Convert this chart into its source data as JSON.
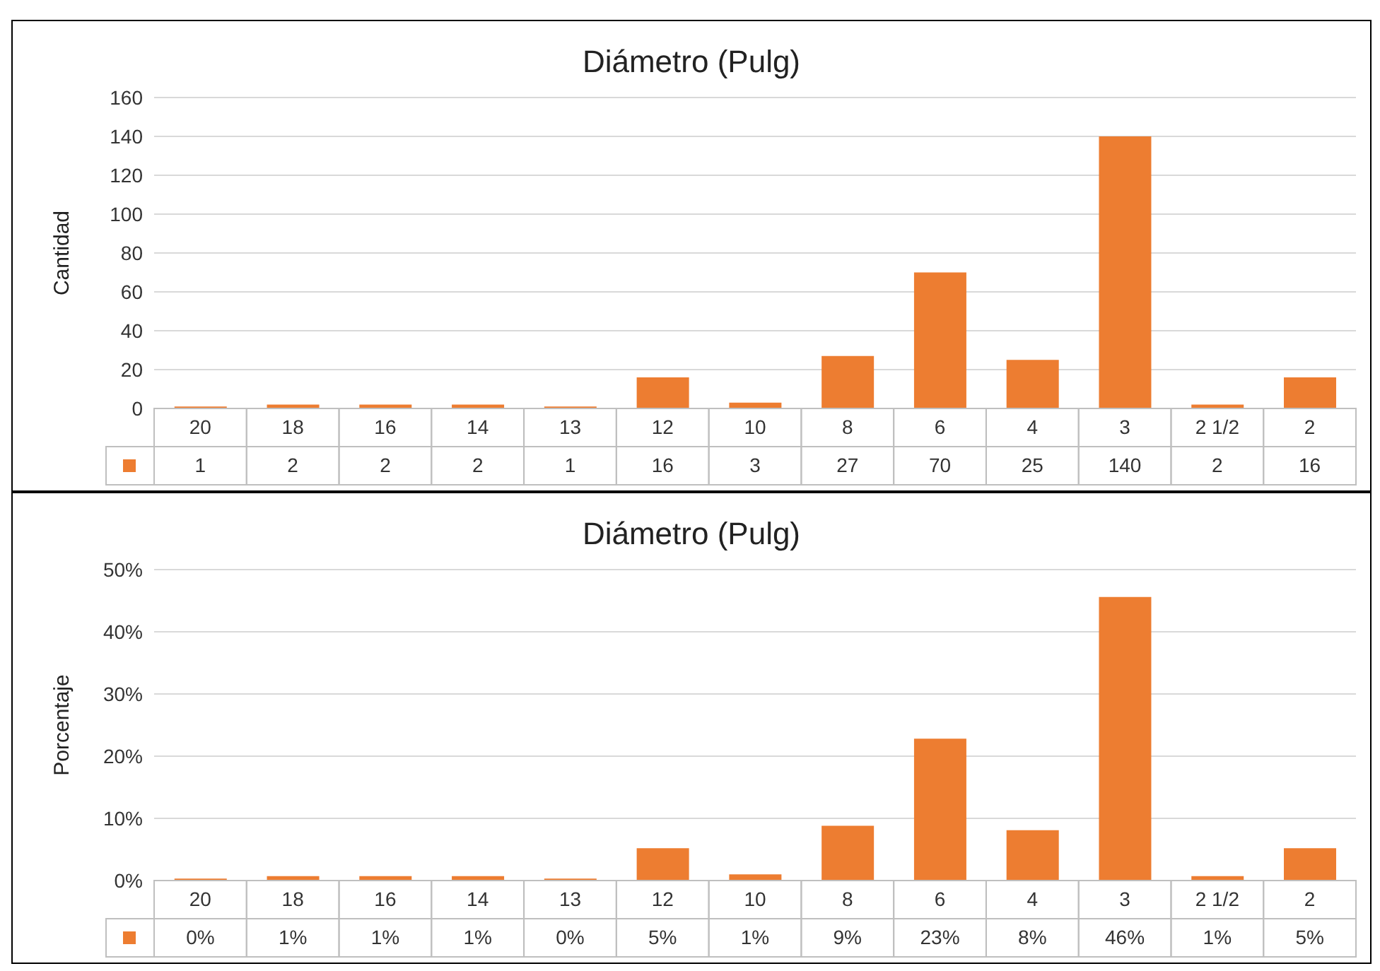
{
  "chart_data": [
    {
      "type": "bar",
      "title": "Diámetro (Pulg)",
      "ylabel": "Cantidad",
      "categories": [
        "20",
        "18",
        "16",
        "14",
        "13",
        "12",
        "10",
        "8",
        "6",
        "4",
        "3",
        "2 1/2",
        "2"
      ],
      "values": [
        1,
        2,
        2,
        2,
        1,
        16,
        3,
        27,
        70,
        25,
        140,
        2,
        16
      ],
      "color": "#ed7d31",
      "ylim": [
        0,
        160
      ],
      "yticks": [
        0,
        20,
        40,
        60,
        80,
        100,
        120,
        140,
        160
      ],
      "grid": "y",
      "data_labels": true
    },
    {
      "type": "bar",
      "title": "Diámetro (Pulg)",
      "ylabel": "Porcentaje",
      "categories": [
        "20",
        "18",
        "16",
        "14",
        "13",
        "12",
        "10",
        "8",
        "6",
        "4",
        "3",
        "2 1/2",
        "2"
      ],
      "values": [
        0.3,
        0.7,
        0.7,
        0.7,
        0.3,
        5.2,
        1,
        8.8,
        22.8,
        8.1,
        45.6,
        0.7,
        5.2
      ],
      "color": "#ed7d31",
      "ylim": [
        0,
        50
      ],
      "yticks": [
        {
          "value": 0,
          "label": "0%"
        },
        {
          "value": 10,
          "label": "10%"
        },
        {
          "value": 20,
          "label": "20%"
        },
        {
          "value": 30,
          "label": "30%"
        },
        {
          "value": 40,
          "label": "40%"
        },
        {
          "value": 50,
          "label": "50%"
        }
      ],
      "grid": "y",
      "value_labels": [
        "0%",
        "1%",
        "1%",
        "1%",
        "0%",
        "5%",
        "1%",
        "9%",
        "23%",
        "8%",
        "46%",
        "1%",
        "5%"
      ]
    }
  ]
}
